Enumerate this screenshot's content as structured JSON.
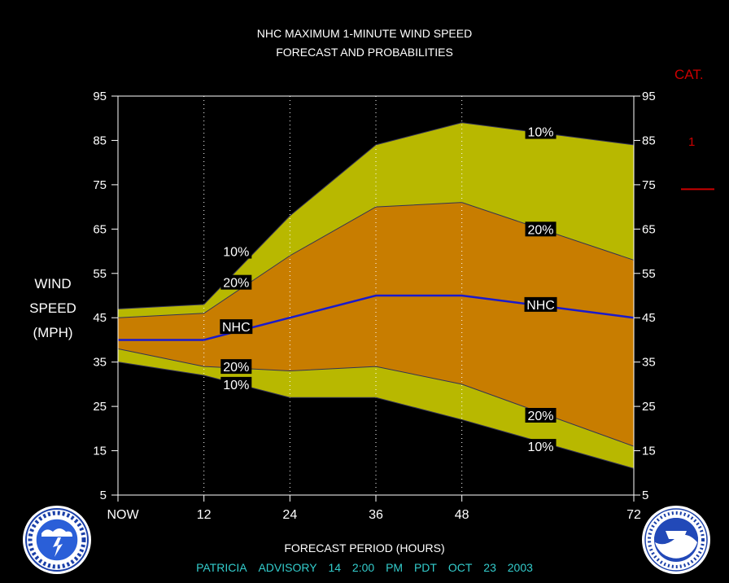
{
  "title_line1": "NHC MAXIMUM 1-MINUTE WIND SPEED",
  "title_line2": "FORECAST AND PROBABILITIES",
  "ylabel_lines": [
    "WIND",
    "SPEED",
    "(MPH)"
  ],
  "xlabel": "FORECAST PERIOD (HOURS)",
  "footer": {
    "storm": "PATRICIA",
    "advisory_label": "ADVISORY",
    "advisory_number": "14",
    "time": "2:00",
    "ampm": "PM",
    "zone": "PDT",
    "month": "OCT",
    "day": "23",
    "year": "2003"
  },
  "category": {
    "title": "CAT.",
    "levels": [
      {
        "label": "1",
        "threshold_mph": 74
      }
    ]
  },
  "colors": {
    "background": "#000000",
    "outer_band": "#b8b800",
    "inner_band": "#c87d00",
    "nhc_line": "#1a1acc",
    "category_marker": "#cc0000",
    "footer_text": "#33cccc"
  },
  "chart_data": {
    "type": "area",
    "title": "NHC MAXIMUM 1-MINUTE WIND SPEED FORECAST AND PROBABILITIES",
    "xlabel": "FORECAST PERIOD (HOURS)",
    "ylabel": "WIND SPEED (MPH)",
    "xlim": [
      0,
      72
    ],
    "ylim": [
      5,
      95
    ],
    "x_ticks": [
      {
        "value": 0,
        "label": "NOW"
      },
      {
        "value": 12,
        "label": "12"
      },
      {
        "value": 24,
        "label": "24"
      },
      {
        "value": 36,
        "label": "36"
      },
      {
        "value": 48,
        "label": "48"
      },
      {
        "value": 72,
        "label": "72"
      }
    ],
    "y_ticks": [
      5,
      15,
      25,
      35,
      45,
      55,
      65,
      75,
      85,
      95
    ],
    "vertical_gridlines": [
      12,
      24,
      36,
      48
    ],
    "x": [
      0,
      12,
      24,
      36,
      48,
      72
    ],
    "series": [
      {
        "name": "10%",
        "role": "upper_outer",
        "values": [
          47,
          48,
          68,
          84,
          89,
          84
        ]
      },
      {
        "name": "20%",
        "role": "upper_inner",
        "values": [
          45,
          46,
          59,
          70,
          71,
          58
        ]
      },
      {
        "name": "NHC",
        "role": "forecast",
        "values": [
          40,
          40,
          45,
          50,
          50,
          45
        ]
      },
      {
        "name": "20%",
        "role": "lower_inner",
        "values": [
          38,
          34,
          33,
          34,
          30,
          16
        ]
      },
      {
        "name": "10%",
        "role": "lower_outer",
        "values": [
          35,
          32,
          27,
          27,
          22,
          11
        ]
      }
    ],
    "annotations": [
      {
        "series": 0,
        "text": "10%",
        "x": 16.5,
        "y": 60
      },
      {
        "series": 1,
        "text": "20%",
        "x": 16.5,
        "y": 53
      },
      {
        "series": 2,
        "text": "NHC",
        "x": 16.5,
        "y": 43
      },
      {
        "series": 3,
        "text": "20%",
        "x": 16.5,
        "y": 34
      },
      {
        "series": 4,
        "text": "10%",
        "x": 16.5,
        "y": 30
      },
      {
        "series": 0,
        "text": "10%",
        "x": 59,
        "y": 87
      },
      {
        "series": 1,
        "text": "20%",
        "x": 59,
        "y": 65
      },
      {
        "series": 2,
        "text": "NHC",
        "x": 59,
        "y": 48
      },
      {
        "series": 3,
        "text": "20%",
        "x": 59,
        "y": 23
      },
      {
        "series": 4,
        "text": "10%",
        "x": 59,
        "y": 16
      }
    ]
  }
}
